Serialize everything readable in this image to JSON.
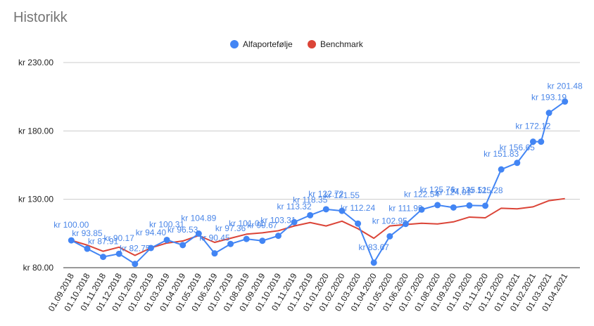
{
  "chart_data": {
    "type": "line",
    "title": "Historikk",
    "xlabel": "",
    "ylabel": "",
    "ylim": [
      80,
      230
    ],
    "yticks": [
      "kr 80.00",
      "kr 130.00",
      "kr 180.00",
      "kr 230.00"
    ],
    "ytick_values": [
      80,
      130,
      180,
      230
    ],
    "grid": true,
    "legend_position": "top",
    "colors": {
      "alfa": "#4285f4",
      "bench": "#db4437",
      "label": "#4a86e8"
    },
    "categories": [
      "01.09.2018",
      "01.10.2018",
      "01.11.2018",
      "01.12.2018",
      "01.01.2019",
      "01.02.2019",
      "01.03.2019",
      "01.04.2019",
      "01.05.2019",
      "01.06.2019",
      "01.07.2019",
      "01.08.2019",
      "01.09.2019",
      "01.10.2019",
      "01.11.2019",
      "01.12.2019",
      "01.01.2020",
      "01.02.2020",
      "01.03.2020",
      "01.04.2020",
      "01.05.2020",
      "01.06.2020",
      "01.07.2020",
      "01.08.2020",
      "01.09.2020",
      "01.10.2020",
      "01.11.2020",
      "01.12.2020",
      "01.01.2021",
      "01.02.2021",
      "01.03.2021",
      "01.04.2021"
    ],
    "x_positions": [
      0,
      1,
      2,
      3,
      4,
      5,
      6,
      7,
      8,
      9,
      10,
      11,
      12,
      13,
      14,
      15,
      16,
      17,
      18,
      19,
      20,
      21,
      22,
      23,
      24,
      25,
      26,
      27,
      28,
      29,
      30,
      31
    ],
    "series": [
      {
        "name": "Alfaportefølje",
        "x": [
          0,
          1,
          2,
          3,
          4,
          5,
          6,
          7,
          8,
          9,
          10,
          11,
          12,
          13,
          14,
          15,
          16,
          17,
          18,
          19,
          20,
          21,
          22,
          23,
          24,
          25,
          26,
          27,
          28,
          29,
          29.5,
          30,
          31
        ],
        "values": [
          100.0,
          93.85,
          87.9,
          90.17,
          82.75,
          94.4,
          100.31,
          96.53,
          104.89,
          90.45,
          97.36,
          101.0,
          99.67,
          103.31,
          113.32,
          118.35,
          122.72,
          121.55,
          112.24,
          83.67,
          102.95,
          111.99,
          122.5,
          125.76,
          124.0,
          125.5,
          125.28,
          151.83,
          156.65,
          172.12,
          172.12,
          193.19,
          201.48
        ],
        "labels": [
          "kr 100.00",
          "kr 93.85",
          "kr 87.91",
          "kr 90.17",
          "kr 82.75",
          "kr 94.40",
          "kr 100.31",
          "kr 96.53",
          "kr 104.89",
          "kr 90.45",
          "kr 97.36",
          "kr 101.01",
          "kr 99.67",
          "kr 103.31",
          "kr 113.32",
          "kr 118.35",
          "kr 122.72",
          "kr 121.55",
          "kr 112.24",
          "kr 83.67",
          "kr 102.95",
          "kr 111.99",
          "kr 122.54",
          "kr 125.76",
          "kr 124.01",
          "kr 125.51",
          "kr 125.28",
          "kr 151.83",
          "kr 156.65",
          "kr 172.12",
          "",
          "kr 193.19",
          "kr 201.48"
        ]
      },
      {
        "name": "Benchmark",
        "x": [
          0,
          1,
          2,
          3,
          4,
          5,
          6,
          7,
          8,
          9,
          10,
          11,
          12,
          13,
          14,
          15,
          16,
          17,
          18,
          19,
          20,
          21,
          22,
          23,
          24,
          25,
          26,
          27,
          28,
          29,
          30,
          31
        ],
        "values": [
          100.0,
          96.5,
          92.0,
          95.0,
          89.0,
          94.5,
          98.0,
          99.5,
          103.5,
          98.5,
          101.5,
          104.5,
          105.5,
          107.0,
          110.5,
          113.0,
          110.5,
          114.0,
          108.5,
          101.5,
          110.5,
          111.5,
          112.5,
          112.0,
          113.5,
          117.0,
          116.5,
          123.5,
          123.0,
          124.5,
          129.0,
          130.5
        ]
      }
    ]
  }
}
